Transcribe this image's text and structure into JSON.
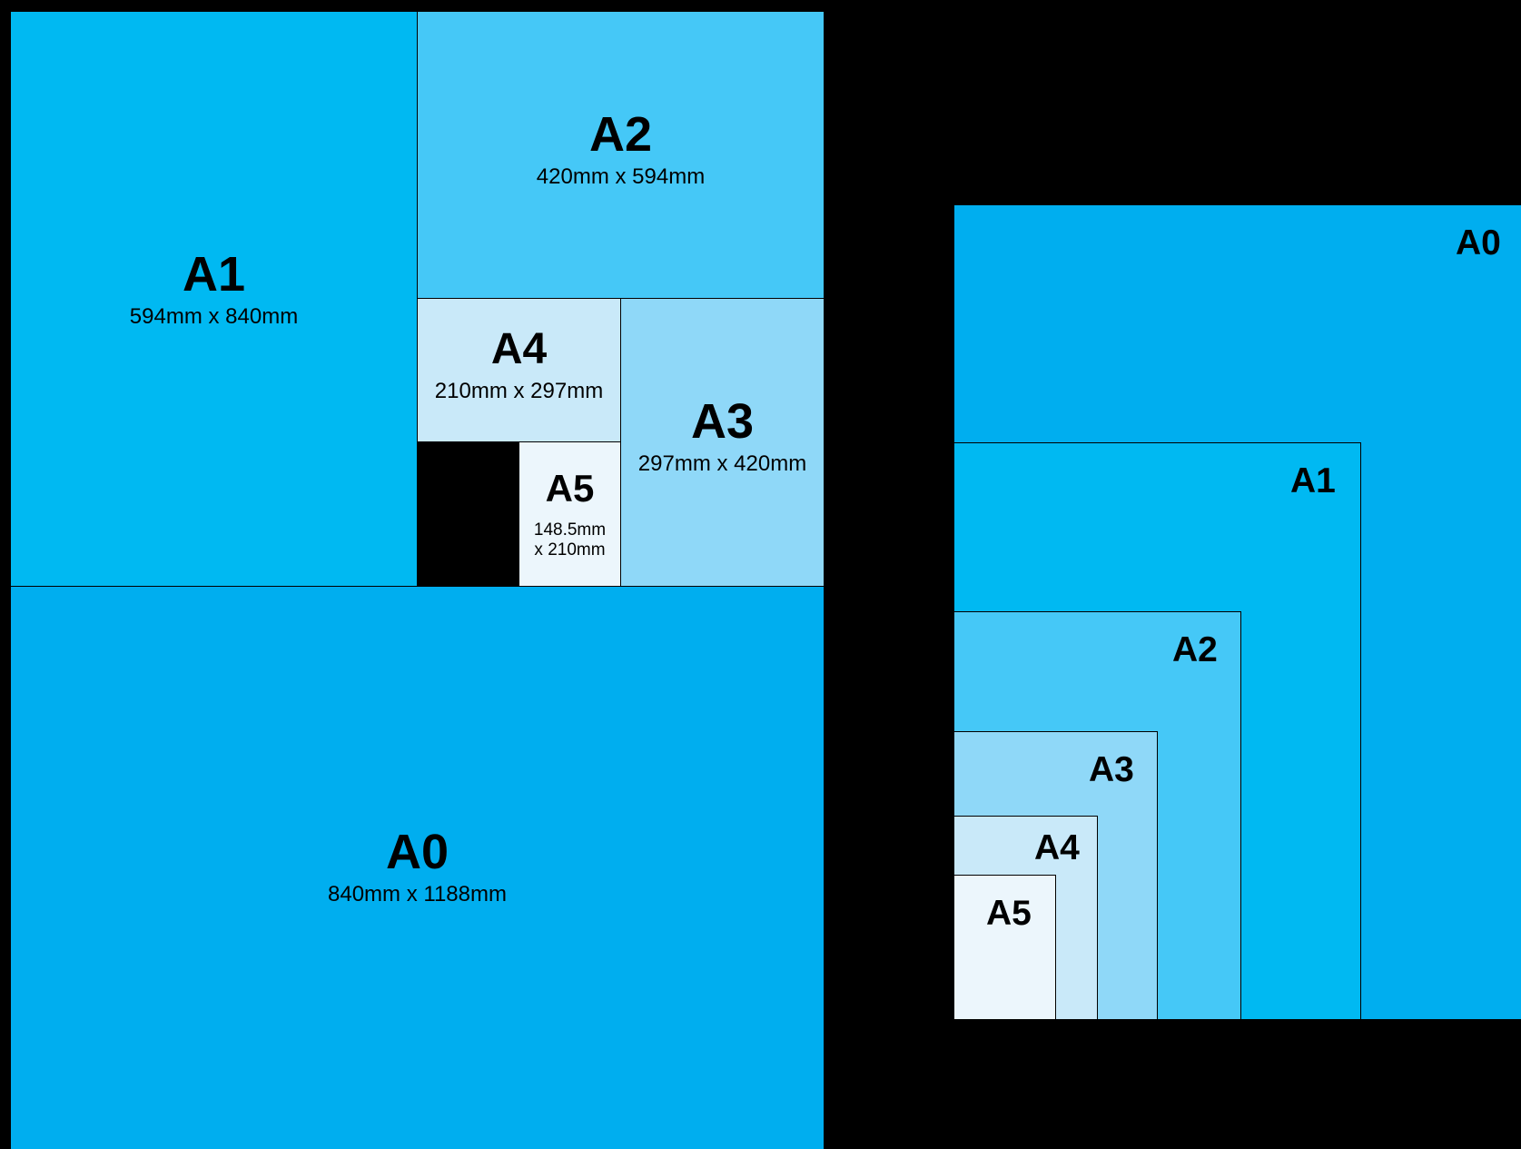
{
  "mosaic": {
    "a0": {
      "name": "A0",
      "dims": "840mm x 1188mm"
    },
    "a1": {
      "name": "A1",
      "dims": "594mm x 840mm"
    },
    "a2": {
      "name": "A2",
      "dims": "420mm x 594mm"
    },
    "a3": {
      "name": "A3",
      "dims": "297mm x 420mm"
    },
    "a4": {
      "name": "A4",
      "dims": "210mm x 297mm"
    },
    "a5": {
      "name": "A5",
      "dims_line1": "148.5mm",
      "dims_line2": "x 210mm"
    }
  },
  "nested": {
    "a0": "A0",
    "a1": "A1",
    "a2": "A2",
    "a3": "A3",
    "a4": "A4",
    "a5": "A5"
  },
  "colors": {
    "a0": "#00aeef",
    "a1": "#00b9f2",
    "a2": "#45c8f7",
    "a3": "#8fd8f8",
    "a4": "#c9e9f9",
    "a5": "#ecf6fc",
    "background": "#000000"
  }
}
